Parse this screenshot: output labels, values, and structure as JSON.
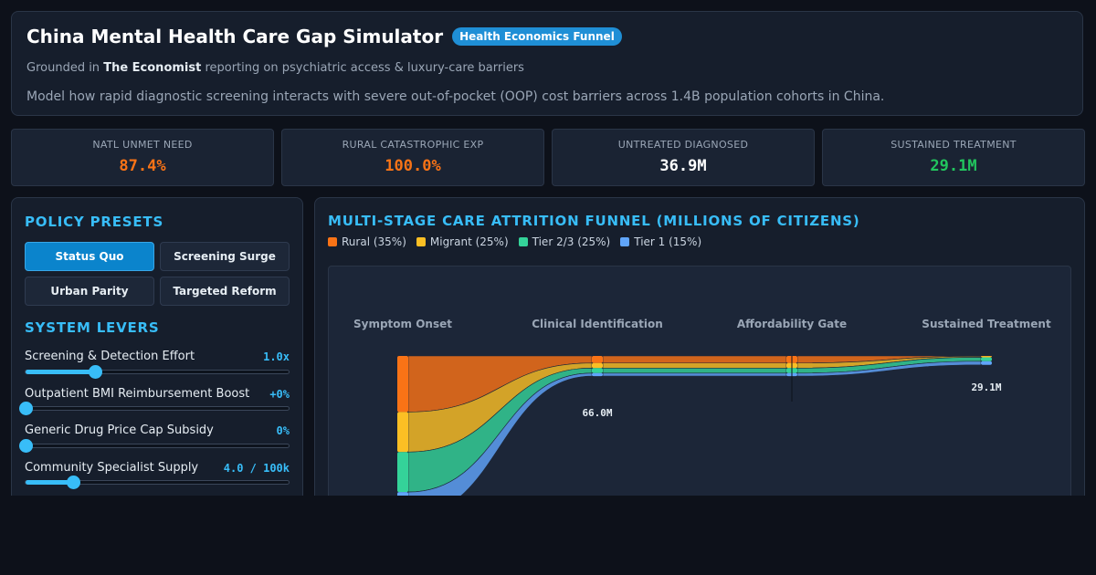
{
  "header": {
    "title": "China Mental Health Care Gap Simulator",
    "badge": "Health Economics Funnel",
    "subtitle_prefix": "Grounded in",
    "subtitle_source": "The Economist",
    "subtitle_suffix": "reporting on psychiatric access & luxury-care barriers",
    "description": "Model how rapid diagnostic screening interacts with severe out-of-pocket (OOP) cost barriers across 1.4B population cohorts in China."
  },
  "metrics": [
    {
      "label": "NATL UNMET NEED",
      "value": "87.4%",
      "color": "#f97316"
    },
    {
      "label": "RURAL CATASTROPHIC EXP",
      "value": "100.0%",
      "color": "#f97316"
    },
    {
      "label": "UNTREATED DIAGNOSED",
      "value": "36.9M",
      "color": "#ffffff"
    },
    {
      "label": "SUSTAINED TREATMENT",
      "value": "29.1M",
      "color": "#22c55e"
    }
  ],
  "presets": {
    "title": "POLICY PRESETS",
    "items": [
      {
        "label": "Status Quo",
        "active": true
      },
      {
        "label": "Screening Surge",
        "active": false
      },
      {
        "label": "Urban Parity",
        "active": false
      },
      {
        "label": "Targeted Reform",
        "active": false
      }
    ]
  },
  "levers": {
    "title": "SYSTEM LEVERS",
    "items": [
      {
        "label": "Screening & Detection Effort",
        "value": "1.0x",
        "level": 0.265
      },
      {
        "label": "Outpatient BMI Reimbursement Boost",
        "value": "+0%",
        "level": 0.0
      },
      {
        "label": "Generic Drug Price Cap Subsidy",
        "value": "0%",
        "level": 0.0
      },
      {
        "label": "Community Specialist Supply",
        "value": "4.0 / 100k",
        "level": 0.18
      }
    ]
  },
  "funnel": {
    "title": "MULTI-STAGE CARE ATTRITION FUNNEL (MILLIONS OF CITIZENS)",
    "legend": [
      {
        "label": "Rural (35%)",
        "color": "#f97316"
      },
      {
        "label": "Migrant (25%)",
        "color": "#fbbf24"
      },
      {
        "label": "Tier 2/3 (25%)",
        "color": "#34d399"
      },
      {
        "label": "Tier 1 (15%)",
        "color": "#60a5fa"
      }
    ],
    "stages": [
      "Symptom Onset",
      "Clinical Identification",
      "Affordability Gate",
      "Sustained Treatment"
    ],
    "stage_values": [
      "",
      "66.0M",
      "",
      "29.1M"
    ]
  },
  "chart_data": {
    "type": "sankey",
    "title": "MULTI-STAGE CARE ATTRITION FUNNEL (MILLIONS OF CITIZENS)",
    "unit": "millions of citizens",
    "stages": [
      "Symptom Onset",
      "Clinical Identification",
      "Affordability Gate",
      "Sustained Treatment"
    ],
    "series": [
      {
        "name": "Rural (35%)",
        "color": "#f97316",
        "values": [
          183.3,
          23.1,
          23.1,
          0.9
        ]
      },
      {
        "name": "Migrant (25%)",
        "color": "#fbbf24",
        "values": [
          130.9,
          16.5,
          16.5,
          3.4
        ]
      },
      {
        "name": "Tier 2/3 (25%)",
        "color": "#34d399",
        "values": [
          130.9,
          16.5,
          16.5,
          12.9
        ]
      },
      {
        "name": "Tier 1 (15%)",
        "color": "#60a5fa",
        "values": [
          78.6,
          9.9,
          9.9,
          11.9
        ]
      }
    ],
    "stage_totals": {
      "Clinical Identification": 66.0,
      "Sustained Treatment": 29.1
    }
  }
}
